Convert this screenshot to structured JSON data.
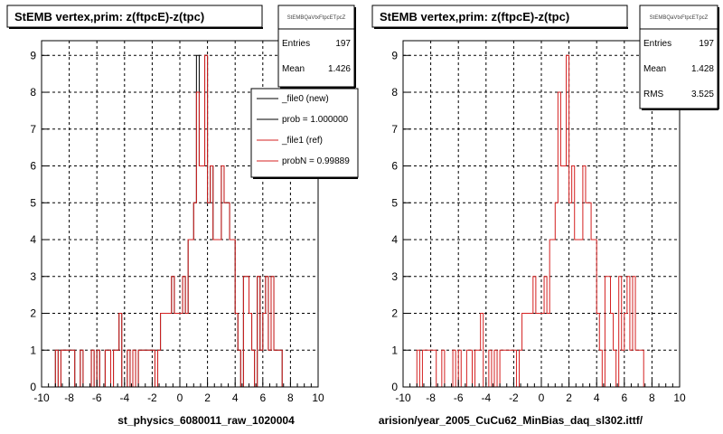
{
  "chart_data": [
    {
      "type": "bar",
      "title": "StEMB  vertex,prim: z(ftpcE)-z(tpc)",
      "xlabel": "st_physics_6080011_raw_1020004",
      "xlim": [
        -10,
        10
      ],
      "ylim": [
        0,
        9.4
      ],
      "xticks": [
        "-10",
        "-8",
        "-6",
        "-4",
        "-2",
        "0",
        "2",
        "4",
        "6",
        "8",
        "10"
      ],
      "yticks": [
        "0",
        "1",
        "2",
        "3",
        "4",
        "5",
        "6",
        "7",
        "8",
        "9"
      ],
      "grid": true,
      "stats_box": {
        "header": "StEMBQaVtxFtpcETpcZ",
        "rows": [
          {
            "label": "Entries",
            "value": "197"
          },
          {
            "label": "Mean",
            "value": "1.426"
          }
        ]
      },
      "legend": {
        "position": "top-right",
        "entries": [
          {
            "label": "_file0 (new)",
            "color": "#000000"
          },
          {
            "label": "prob = 1.000000",
            "color": "#000000"
          },
          {
            "label": "_file1 (ref)",
            "color": "#d42020"
          },
          {
            "label": "probN = 0.99889",
            "color": "#d42020"
          }
        ]
      },
      "bin_width": 0.2,
      "series": [
        {
          "name": "_file0 (new)",
          "color": "#000000",
          "x_start": -9.0,
          "values": [
            1,
            0,
            1,
            1,
            1,
            1,
            1,
            0,
            0,
            1,
            0,
            0,
            0,
            1,
            0,
            1,
            0,
            0,
            1,
            1,
            0,
            1,
            1,
            2,
            0,
            0,
            1,
            0,
            1,
            0,
            1,
            1,
            1,
            1,
            1,
            1,
            0,
            1,
            2,
            2,
            2,
            2,
            3,
            2,
            2,
            2,
            3,
            2,
            4,
            4,
            5,
            9,
            6,
            6,
            9,
            5,
            6,
            4,
            4,
            4,
            6,
            5,
            5,
            4,
            4,
            2,
            1,
            0,
            3,
            3,
            2,
            1,
            0,
            3,
            1,
            2,
            3,
            1,
            3,
            1,
            1,
            1
          ]
        },
        {
          "name": "_file1 (ref)",
          "color": "#d42020",
          "x_start": -9.0,
          "values": [
            1,
            0,
            1,
            1,
            1,
            1,
            1,
            0,
            0,
            1,
            0,
            0,
            0,
            1,
            0,
            1,
            0,
            0,
            1,
            1,
            0,
            1,
            1,
            2,
            0,
            0,
            1,
            0,
            1,
            0,
            1,
            1,
            1,
            1,
            1,
            1,
            0,
            1,
            2,
            2,
            2,
            2,
            3,
            2,
            2,
            2,
            3,
            2,
            4,
            4,
            5,
            8,
            6,
            6,
            9,
            5,
            6,
            4,
            4,
            4,
            6,
            5,
            5,
            4,
            4,
            2,
            1,
            0,
            3,
            3,
            2,
            1,
            0,
            3,
            1,
            2,
            3,
            1,
            3,
            1,
            1,
            1
          ]
        }
      ]
    },
    {
      "type": "bar",
      "title": "StEMB  vertex,prim: z(ftpcE)-z(tpc)",
      "xlabel": "arision/year_2005_CuCu62_MinBias_daq_sl302.ittf/",
      "xlim": [
        -10,
        10
      ],
      "ylim": [
        0,
        9.4
      ],
      "xticks": [
        "-10",
        "-8",
        "-6",
        "-4",
        "-2",
        "0",
        "2",
        "4",
        "6",
        "8",
        "10"
      ],
      "yticks": [
        "0",
        "1",
        "2",
        "3",
        "4",
        "5",
        "6",
        "7",
        "8",
        "9"
      ],
      "grid": true,
      "stats_box": {
        "header": "StEMBQaVtxFtpcETpcZ",
        "rows": [
          {
            "label": "Entries",
            "value": "197"
          },
          {
            "label": "Mean",
            "value": "1.428"
          },
          {
            "label": "RMS",
            "value": "3.525"
          }
        ]
      },
      "bin_width": 0.2,
      "series": [
        {
          "color": "#d42020",
          "x_start": -9.0,
          "values": [
            1,
            0,
            1,
            1,
            1,
            1,
            1,
            0,
            0,
            1,
            0,
            0,
            0,
            1,
            0,
            1,
            0,
            0,
            1,
            1,
            0,
            1,
            1,
            2,
            0,
            0,
            1,
            0,
            1,
            0,
            1,
            1,
            1,
            1,
            1,
            1,
            0,
            1,
            2,
            2,
            2,
            2,
            3,
            2,
            2,
            2,
            3,
            2,
            4,
            4,
            5,
            8,
            6,
            6,
            9,
            5,
            6,
            4,
            4,
            4,
            6,
            5,
            5,
            4,
            4,
            2,
            1,
            0,
            3,
            3,
            2,
            1,
            0,
            3,
            1,
            2,
            3,
            1,
            3,
            1,
            1,
            1
          ]
        }
      ]
    }
  ]
}
